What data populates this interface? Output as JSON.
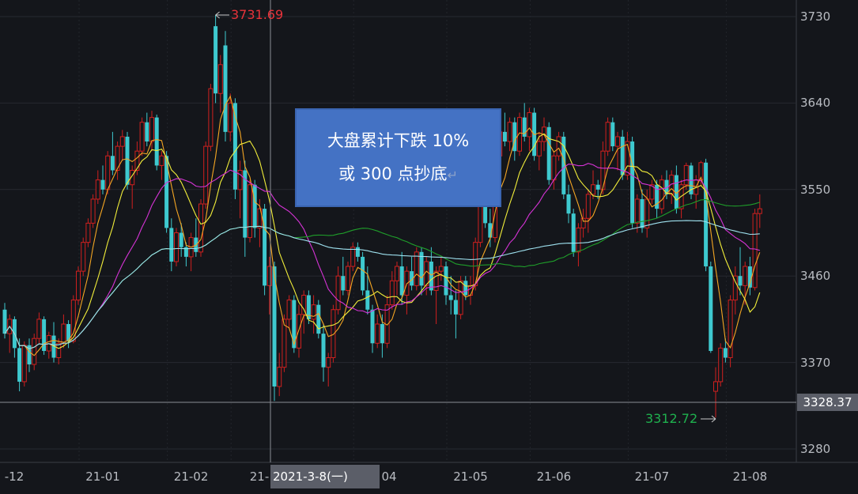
{
  "chart_data": {
    "type": "candlestick",
    "y_ticks": [
      3730,
      3640,
      3550,
      3460,
      3370,
      3280
    ],
    "ylim": [
      3262,
      3747
    ],
    "x_tick_labels": [
      "-12",
      "21-01",
      "21-02",
      "21-",
      "04",
      "21-05",
      "21-06",
      "21-07",
      "21-08"
    ],
    "x_tick_index": [
      2,
      20,
      38,
      51,
      76,
      95,
      112,
      132,
      152
    ],
    "up_color": "#d0201f",
    "down_color": "#3ec9cf",
    "ma_colors": [
      "#f5a623",
      "#f2ee3a",
      "#d633d6",
      "#1f9e2a",
      "#9fe2f0"
    ],
    "ma_periods": [
      5,
      10,
      20,
      60,
      120
    ],
    "crosshair": {
      "price_label": "3328.37",
      "date_label": "2021-3-8(一)",
      "index": 55
    },
    "high_annotation": {
      "text": "3731.69",
      "index": 43,
      "color": "#e8333a"
    },
    "low_annotation": {
      "text": "3312.72",
      "index": 145,
      "color": "#1fb04e"
    },
    "ohlc": [
      [
        3425,
        3432,
        3395,
        3400
      ],
      [
        3400,
        3420,
        3380,
        3415
      ],
      [
        3415,
        3418,
        3375,
        3385
      ],
      [
        3385,
        3395,
        3340,
        3350
      ],
      [
        3350,
        3392,
        3345,
        3388
      ],
      [
        3388,
        3395,
        3360,
        3368
      ],
      [
        3368,
        3400,
        3362,
        3395
      ],
      [
        3395,
        3422,
        3390,
        3415
      ],
      [
        3415,
        3418,
        3378,
        3382
      ],
      [
        3382,
        3402,
        3374,
        3398
      ],
      [
        3398,
        3412,
        3370,
        3375
      ],
      [
        3375,
        3395,
        3368,
        3390
      ],
      [
        3390,
        3420,
        3385,
        3410
      ],
      [
        3410,
        3414,
        3385,
        3392
      ],
      [
        3392,
        3440,
        3390,
        3435
      ],
      [
        3435,
        3470,
        3430,
        3465
      ],
      [
        3465,
        3500,
        3460,
        3495
      ],
      [
        3495,
        3520,
        3490,
        3515
      ],
      [
        3515,
        3545,
        3510,
        3540
      ],
      [
        3540,
        3570,
        3535,
        3560
      ],
      [
        3560,
        3575,
        3545,
        3550
      ],
      [
        3550,
        3590,
        3545,
        3585
      ],
      [
        3585,
        3610,
        3565,
        3570
      ],
      [
        3570,
        3600,
        3560,
        3595
      ],
      [
        3595,
        3612,
        3580,
        3605
      ],
      [
        3605,
        3610,
        3550,
        3555
      ],
      [
        3555,
        3575,
        3530,
        3570
      ],
      [
        3570,
        3600,
        3565,
        3590
      ],
      [
        3590,
        3625,
        3585,
        3620
      ],
      [
        3620,
        3630,
        3595,
        3600
      ],
      [
        3600,
        3632,
        3590,
        3625
      ],
      [
        3625,
        3628,
        3570,
        3575
      ],
      [
        3575,
        3590,
        3560,
        3585
      ],
      [
        3585,
        3590,
        3505,
        3510
      ],
      [
        3510,
        3520,
        3465,
        3475
      ],
      [
        3475,
        3510,
        3470,
        3505
      ],
      [
        3505,
        3515,
        3480,
        3490
      ],
      [
        3490,
        3495,
        3470,
        3480
      ],
      [
        3480,
        3505,
        3465,
        3500
      ],
      [
        3500,
        3520,
        3480,
        3485
      ],
      [
        3485,
        3540,
        3480,
        3535
      ],
      [
        3535,
        3600,
        3530,
        3595
      ],
      [
        3595,
        3660,
        3590,
        3655
      ],
      [
        3720,
        3731.69,
        3640,
        3650
      ],
      [
        3650,
        3690,
        3630,
        3680
      ],
      [
        3700,
        3715,
        3600,
        3610
      ],
      [
        3610,
        3650,
        3600,
        3640
      ],
      [
        3640,
        3645,
        3540,
        3550
      ],
      [
        3550,
        3580,
        3520,
        3570
      ],
      [
        3570,
        3580,
        3480,
        3500
      ],
      [
        3500,
        3560,
        3495,
        3555
      ],
      [
        3555,
        3560,
        3500,
        3510
      ],
      [
        3510,
        3540,
        3490,
        3530
      ],
      [
        3530,
        3535,
        3440,
        3450
      ],
      [
        3450,
        3480,
        3420,
        3470
      ],
      [
        3470,
        3475,
        3330,
        3345
      ],
      [
        3345,
        3380,
        3335,
        3365
      ],
      [
        3365,
        3420,
        3360,
        3415
      ],
      [
        3415,
        3440,
        3405,
        3435
      ],
      [
        3435,
        3440,
        3380,
        3385
      ],
      [
        3385,
        3430,
        3375,
        3420
      ],
      [
        3420,
        3445,
        3400,
        3440
      ],
      [
        3440,
        3445,
        3410,
        3415
      ],
      [
        3415,
        3440,
        3400,
        3430
      ],
      [
        3430,
        3435,
        3395,
        3400
      ],
      [
        3400,
        3410,
        3350,
        3365
      ],
      [
        3365,
        3380,
        3345,
        3375
      ],
      [
        3375,
        3430,
        3370,
        3425
      ],
      [
        3425,
        3470,
        3420,
        3460
      ],
      [
        3460,
        3480,
        3440,
        3445
      ],
      [
        3445,
        3475,
        3440,
        3470
      ],
      [
        3470,
        3495,
        3465,
        3490
      ],
      [
        3490,
        3495,
        3475,
        3480
      ],
      [
        3480,
        3485,
        3440,
        3445
      ],
      [
        3445,
        3470,
        3420,
        3425
      ],
      [
        3425,
        3430,
        3380,
        3390
      ],
      [
        3390,
        3420,
        3385,
        3410
      ],
      [
        3410,
        3420,
        3375,
        3390
      ],
      [
        3390,
        3440,
        3385,
        3430
      ],
      [
        3430,
        3465,
        3425,
        3455
      ],
      [
        3455,
        3475,
        3440,
        3470
      ],
      [
        3470,
        3485,
        3430,
        3440
      ],
      [
        3440,
        3470,
        3420,
        3465
      ],
      [
        3465,
        3480,
        3445,
        3450
      ],
      [
        3450,
        3490,
        3445,
        3485
      ],
      [
        3485,
        3490,
        3440,
        3450
      ],
      [
        3450,
        3480,
        3440,
        3475
      ],
      [
        3475,
        3490,
        3440,
        3445
      ],
      [
        3445,
        3470,
        3410,
        3465
      ],
      [
        3465,
        3480,
        3455,
        3470
      ],
      [
        3470,
        3475,
        3430,
        3440
      ],
      [
        3440,
        3460,
        3420,
        3435
      ],
      [
        3435,
        3445,
        3395,
        3420
      ],
      [
        3420,
        3460,
        3415,
        3455
      ],
      [
        3455,
        3460,
        3435,
        3440
      ],
      [
        3440,
        3460,
        3430,
        3450
      ],
      [
        3450,
        3500,
        3445,
        3495
      ],
      [
        3495,
        3540,
        3490,
        3535
      ],
      [
        3535,
        3545,
        3510,
        3515
      ],
      [
        3515,
        3530,
        3490,
        3500
      ],
      [
        3500,
        3590,
        3495,
        3585
      ],
      [
        3585,
        3620,
        3575,
        3610
      ],
      [
        3610,
        3630,
        3595,
        3600
      ],
      [
        3600,
        3625,
        3590,
        3620
      ],
      [
        3620,
        3625,
        3580,
        3590
      ],
      [
        3590,
        3630,
        3585,
        3625
      ],
      [
        3625,
        3640,
        3600,
        3605
      ],
      [
        3605,
        3635,
        3590,
        3630
      ],
      [
        3630,
        3635,
        3580,
        3585
      ],
      [
        3585,
        3610,
        3570,
        3600
      ],
      [
        3600,
        3625,
        3590,
        3615
      ],
      [
        3615,
        3620,
        3555,
        3560
      ],
      [
        3560,
        3590,
        3550,
        3585
      ],
      [
        3585,
        3610,
        3580,
        3605
      ],
      [
        3605,
        3610,
        3540,
        3545
      ],
      [
        3545,
        3555,
        3515,
        3525
      ],
      [
        3525,
        3530,
        3480,
        3485
      ],
      [
        3485,
        3515,
        3470,
        3510
      ],
      [
        3510,
        3530,
        3500,
        3520
      ],
      [
        3520,
        3550,
        3505,
        3545
      ],
      [
        3545,
        3570,
        3540,
        3555
      ],
      [
        3555,
        3560,
        3540,
        3550
      ],
      [
        3550,
        3600,
        3545,
        3590
      ],
      [
        3590,
        3625,
        3585,
        3620
      ],
      [
        3620,
        3625,
        3590,
        3595
      ],
      [
        3595,
        3610,
        3570,
        3605
      ],
      [
        3605,
        3612,
        3560,
        3565
      ],
      [
        3565,
        3610,
        3560,
        3600
      ],
      [
        3600,
        3605,
        3510,
        3515
      ],
      [
        3515,
        3545,
        3505,
        3540
      ],
      [
        3540,
        3550,
        3505,
        3510
      ],
      [
        3510,
        3550,
        3500,
        3540
      ],
      [
        3540,
        3560,
        3535,
        3555
      ],
      [
        3555,
        3560,
        3520,
        3530
      ],
      [
        3530,
        3565,
        3525,
        3560
      ],
      [
        3560,
        3570,
        3540,
        3545
      ],
      [
        3545,
        3570,
        3535,
        3565
      ],
      [
        3565,
        3575,
        3525,
        3530
      ],
      [
        3530,
        3560,
        3520,
        3555
      ],
      [
        3555,
        3578,
        3550,
        3575
      ],
      [
        3575,
        3578,
        3540,
        3545
      ],
      [
        3545,
        3565,
        3530,
        3560
      ],
      [
        3560,
        3580,
        3555,
        3578
      ],
      [
        3578,
        3582,
        3465,
        3470
      ],
      [
        3470,
        3475,
        3380,
        3382
      ],
      [
        3340,
        3365,
        3312.72,
        3350
      ],
      [
        3350,
        3390,
        3345,
        3385
      ],
      [
        3385,
        3395,
        3370,
        3375
      ],
      [
        3375,
        3440,
        3365,
        3435
      ],
      [
        3435,
        3470,
        3420,
        3460
      ],
      [
        3460,
        3490,
        3440,
        3450
      ],
      [
        3450,
        3475,
        3430,
        3470
      ],
      [
        3470,
        3480,
        3440,
        3448
      ],
      [
        3448,
        3530,
        3445,
        3525
      ],
      [
        3525,
        3545,
        3510,
        3530
      ]
    ]
  },
  "annotation_box": {
    "line1": "大盘累计下跌 10%",
    "line2": "或 300 点抄底",
    "return_mark": "↵"
  }
}
